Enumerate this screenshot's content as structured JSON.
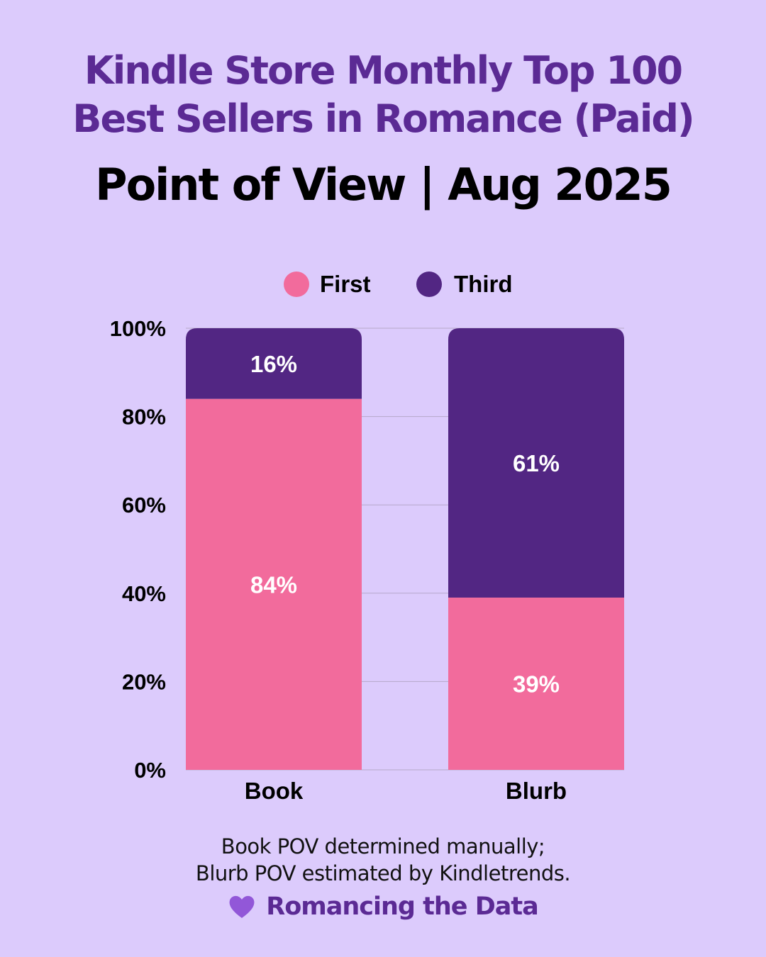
{
  "title": {
    "line1": "Kindle Store Monthly Top 100",
    "line2": "Best Sellers in Romance (Paid)"
  },
  "subtitle": "Point of View | Aug 2025",
  "colors": {
    "background": "#dccbfc",
    "first": "#f26b9c",
    "third": "#522683",
    "title": "#5b2a94",
    "heart": "#9257d8",
    "grid": "#b6a8c9"
  },
  "chart_data": {
    "type": "bar",
    "stacked": true,
    "categories": [
      "Book",
      "Blurb"
    ],
    "series": [
      {
        "name": "First",
        "values": [
          84,
          39
        ],
        "labels": [
          "84%",
          "39%"
        ]
      },
      {
        "name": "Third",
        "values": [
          16,
          61
        ],
        "labels": [
          "16%",
          "61%"
        ]
      }
    ],
    "ylim": [
      0,
      100
    ],
    "yticks": [
      0,
      20,
      40,
      60,
      80,
      100
    ],
    "ytick_labels": [
      "0%",
      "20%",
      "40%",
      "60%",
      "80%",
      "100%"
    ],
    "grid": true,
    "legend_position": "top-center"
  },
  "notes": {
    "line1": "Book POV determined manually;",
    "line2": "Blurb POV estimated by Kindletrends."
  },
  "brand": {
    "icon": "heart-icon",
    "label": "Romancing the Data"
  }
}
